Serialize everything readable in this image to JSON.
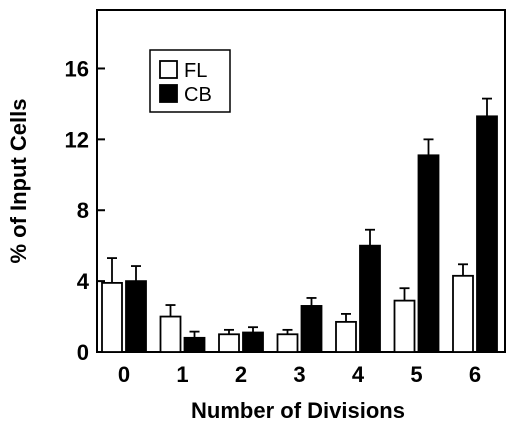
{
  "chart_data": {
    "type": "bar",
    "categories": [
      "0",
      "1",
      "2",
      "3",
      "4",
      "5",
      "6"
    ],
    "series": [
      {
        "name": "FL",
        "fill": "#ffffff",
        "values": [
          3.9,
          2.0,
          1.0,
          1.0,
          1.7,
          2.9,
          4.3
        ],
        "errors": [
          1.4,
          0.65,
          0.25,
          0.25,
          0.45,
          0.7,
          0.65
        ]
      },
      {
        "name": "CB",
        "fill": "#000000",
        "values": [
          4.0,
          0.8,
          1.1,
          2.6,
          6.0,
          11.1,
          13.3
        ],
        "errors": [
          0.85,
          0.35,
          0.3,
          0.45,
          0.9,
          0.9,
          1.0
        ]
      }
    ],
    "xlabel": "Number of Divisions",
    "ylabel": "% of Input Cells",
    "ylim": [
      0,
      19.3
    ],
    "yticks": [
      0,
      4,
      8,
      12,
      16
    ],
    "legend_position": "top-left",
    "grid": false
  }
}
